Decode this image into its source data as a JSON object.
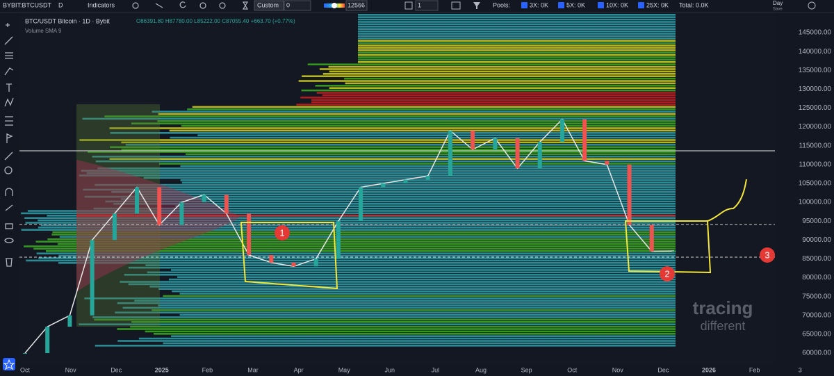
{
  "toolbar": {
    "symbol": "BYBIT:BTCUSDT",
    "interval": "D",
    "indicators": "Indicators",
    "preset": "Custom",
    "preset_value": "0",
    "slider_value": "12566",
    "layers": "1",
    "pools": "Pools:",
    "pool_3x": "3X: 0K",
    "pool_5x": "5X: 0K",
    "pool_10x": "10X: 0K",
    "pool_25x": "25X: 0K",
    "total": "Total: 0.0K",
    "layout": "Day",
    "save": "Save"
  },
  "legend": {
    "title": "BTC/USDT Bitcoin · 1D · Bybit",
    "ohlc": "O86391.80 H87780.00 L85222.00 C87055.40 +663.70 (+0.77%)",
    "volume": "Volume SMA 9"
  },
  "price_axis": [
    "145000.00",
    "140000.00",
    "135000.00",
    "130000.00",
    "125000.00",
    "120000.00",
    "115000.00",
    "110000.00",
    "105000.00",
    "100000.00",
    "95000.00",
    "90000.00",
    "85000.00",
    "80000.00",
    "75000.00",
    "70000.00",
    "65000.00",
    "60000.00"
  ],
  "time_axis": [
    "Oct",
    "Nov",
    "Dec",
    "2025",
    "Feb",
    "Mar",
    "Apr",
    "May",
    "Jun",
    "Jul",
    "Aug",
    "Sep",
    "Oct",
    "Nov",
    "Dec",
    "2026",
    "Feb",
    "3"
  ],
  "last_price": "87055.40",
  "price_path": [
    60000,
    67000,
    70000,
    90000,
    97000,
    104000,
    94000,
    100000,
    102000,
    97000,
    86000,
    84000,
    83000,
    85000,
    95000,
    104000,
    105000,
    106000,
    107000,
    119000,
    114000,
    117000,
    109000,
    116000,
    122000,
    111000,
    110000,
    94000,
    87000,
    87055.4
  ],
  "annotations": [
    "1",
    "2",
    "3"
  ],
  "watermark": {
    "line1": "tracing",
    "line2": "different"
  }
}
